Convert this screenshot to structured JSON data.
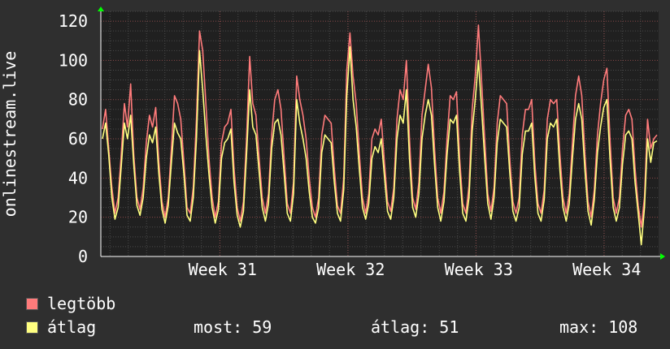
{
  "chart_data": {
    "type": "line",
    "ylabel": "onlinestream.live",
    "ylim": [
      0,
      125
    ],
    "yticks": [
      0,
      20,
      40,
      60,
      80,
      100,
      120
    ],
    "xticks": [
      "Week 31",
      "Week 32",
      "Week 33",
      "Week 34"
    ],
    "grid": true,
    "series": [
      {
        "name": "legtöbb",
        "color": "#ff7b7b",
        "values": [
          65,
          75,
          55,
          35,
          22,
          30,
          52,
          78,
          66,
          88,
          52,
          30,
          24,
          35,
          58,
          72,
          66,
          76,
          48,
          28,
          20,
          30,
          55,
          82,
          78,
          70,
          48,
          25,
          22,
          35,
          70,
          115,
          105,
          78,
          50,
          30,
          20,
          28,
          58,
          66,
          68,
          75,
          45,
          25,
          18,
          28,
          60,
          102,
          78,
          72,
          50,
          30,
          22,
          32,
          62,
          80,
          85,
          75,
          50,
          27,
          22,
          38,
          92,
          80,
          72,
          60,
          40,
          25,
          20,
          30,
          62,
          72,
          70,
          68,
          45,
          26,
          22,
          40,
          95,
          114,
          92,
          78,
          52,
          30,
          22,
          32,
          60,
          65,
          62,
          70,
          48,
          28,
          23,
          35,
          70,
          85,
          80,
          100,
          60,
          30,
          24,
          38,
          72,
          85,
          98,
          86,
          55,
          30,
          22,
          33,
          60,
          82,
          80,
          84,
          50,
          27,
          22,
          36,
          75,
          92,
          118,
          90,
          60,
          32,
          23,
          35,
          68,
          82,
          80,
          78,
          50,
          28,
          22,
          30,
          62,
          75,
          75,
          80,
          48,
          27,
          22,
          34,
          70,
          80,
          78,
          80,
          52,
          30,
          22,
          32,
          58,
          82,
          92,
          82,
          52,
          28,
          20,
          34,
          62,
          78,
          90,
          96,
          60,
          30,
          22,
          30,
          55,
          72,
          75,
          70,
          45,
          26,
          15,
          30,
          70,
          55,
          60,
          62
        ]
      },
      {
        "name": "átlag",
        "color": "#ffff80",
        "values": [
          60,
          68,
          52,
          30,
          19,
          25,
          46,
          68,
          60,
          72,
          47,
          26,
          21,
          30,
          50,
          62,
          58,
          66,
          42,
          24,
          17,
          26,
          48,
          68,
          63,
          60,
          42,
          21,
          18,
          30,
          60,
          105,
          85,
          62,
          42,
          25,
          17,
          24,
          50,
          58,
          60,
          65,
          38,
          21,
          15,
          23,
          52,
          85,
          66,
          62,
          43,
          25,
          18,
          27,
          55,
          68,
          70,
          62,
          42,
          22,
          18,
          32,
          80,
          68,
          60,
          50,
          33,
          20,
          17,
          25,
          53,
          62,
          60,
          58,
          38,
          22,
          18,
          34,
          82,
          107,
          80,
          66,
          44,
          25,
          19,
          27,
          50,
          56,
          53,
          60,
          41,
          23,
          19,
          30,
          60,
          72,
          68,
          85,
          50,
          25,
          20,
          32,
          60,
          72,
          80,
          72,
          47,
          25,
          18,
          28,
          52,
          70,
          68,
          72,
          43,
          22,
          18,
          30,
          64,
          80,
          100,
          76,
          50,
          27,
          19,
          30,
          58,
          70,
          68,
          66,
          43,
          23,
          18,
          25,
          52,
          64,
          64,
          68,
          41,
          22,
          18,
          29,
          60,
          68,
          66,
          70,
          44,
          25,
          18,
          27,
          50,
          70,
          78,
          70,
          44,
          23,
          16,
          29,
          53,
          66,
          76,
          80,
          50,
          25,
          18,
          25,
          47,
          62,
          64,
          60,
          38,
          22,
          6,
          25,
          60,
          48,
          58,
          59
        ]
      }
    ]
  },
  "legend": {
    "max_label": "legtöbb",
    "avg_label": "átlag",
    "now": "most: 59",
    "avg": "átlag: 51",
    "max": "max: 108"
  }
}
